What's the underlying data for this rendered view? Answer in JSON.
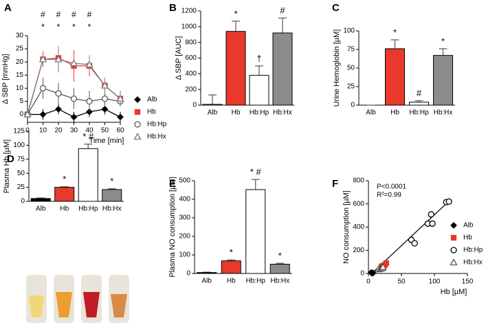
{
  "chart_data": [
    {
      "type": "line",
      "label": "A",
      "x_label": "Time [min]",
      "y_label": "Δ SBP [mmHg]",
      "x": [
        0,
        10,
        20,
        30,
        40,
        50,
        60
      ],
      "xlim": [
        0,
        60
      ],
      "xticks": [
        0,
        10,
        20,
        30,
        40,
        50,
        60
      ],
      "ylim": [
        -3,
        30
      ],
      "yticks": [
        0,
        5,
        10,
        15,
        20,
        25,
        30
      ],
      "series": [
        {
          "name": "Alb",
          "color": "#000000",
          "marker": "diamond",
          "fill": "#000000",
          "values": [
            0,
            0,
            2,
            -1,
            1,
            2,
            -1
          ],
          "errors": [
            0,
            2,
            2,
            2,
            2,
            2,
            2
          ]
        },
        {
          "name": "Hb",
          "color": "#e8392b",
          "marker": "square",
          "fill": "#e8392b",
          "values": [
            0,
            21,
            21.5,
            18.5,
            18.5,
            11,
            6
          ],
          "errors": [
            0,
            3,
            4,
            6,
            4,
            2,
            2
          ]
        },
        {
          "name": "Hb:Hp",
          "color": "#555555",
          "marker": "circle",
          "fill": "#ffffff",
          "values": [
            0,
            10,
            8,
            6,
            5,
            6,
            5
          ],
          "errors": [
            0,
            4,
            4,
            4,
            4,
            3,
            2
          ]
        },
        {
          "name": "Hb:Hx",
          "color": "#777777",
          "marker": "triangle",
          "fill": "#ffffff",
          "values": [
            0,
            21,
            21,
            19.5,
            19,
            11,
            6
          ],
          "errors": [
            0,
            2,
            5,
            2,
            3,
            3,
            3
          ]
        }
      ],
      "annotations": [
        {
          "x": 10,
          "texts": [
            "#",
            "*"
          ]
        },
        {
          "x": 20,
          "texts": [
            "#",
            "*"
          ]
        },
        {
          "x": 30,
          "texts": [
            "#",
            "*"
          ]
        },
        {
          "x": 40,
          "texts": [
            "#",
            "*"
          ]
        }
      ]
    },
    {
      "type": "bar",
      "label": "B",
      "y_label": "Δ SBP [AUC]",
      "categories": [
        "Alb",
        "Hb",
        "Hb:Hp",
        "Hb:Hx"
      ],
      "values": [
        10,
        940,
        380,
        920
      ],
      "errors": [
        120,
        130,
        120,
        190
      ],
      "colors": [
        "#ffffff",
        "#e8392b",
        "#ffffff",
        "#8c8c8c"
      ],
      "annotations": [
        null,
        "*",
        "†",
        "#"
      ],
      "ylim": [
        0,
        1200
      ],
      "yticks": [
        0,
        200,
        400,
        600,
        800,
        1000,
        1200
      ]
    },
    {
      "type": "bar",
      "label": "C",
      "y_label": "Urine Hemoglobin [µM]",
      "categories": [
        "Alb",
        "Hb",
        "Hb:Hp",
        "Hb:Hx"
      ],
      "values": [
        0,
        76,
        4,
        67
      ],
      "errors": [
        0,
        12,
        2,
        9
      ],
      "colors": [
        "#ffffff",
        "#e8392b",
        "#ffffff",
        "#8c8c8c"
      ],
      "annotations": [
        null,
        "*",
        "#",
        "*"
      ],
      "ylim": [
        0,
        100
      ],
      "yticks": [
        0,
        25,
        50,
        75,
        100
      ]
    },
    {
      "type": "bar",
      "label": "D",
      "y_label": "Plasma Hb [µM]",
      "categories": [
        "Alb",
        "Hb",
        "Hb:Hp",
        "Hb:Hx"
      ],
      "values": [
        5,
        25,
        94,
        21
      ],
      "errors": [
        1,
        1,
        8,
        1.5
      ],
      "colors": [
        "#000000",
        "#e8392b",
        "#ffffff",
        "#8c8c8c"
      ],
      "annotations": [
        null,
        "*",
        "* #",
        "*"
      ],
      "ylim": [
        0,
        125
      ],
      "yticks": [
        0,
        25,
        50,
        75,
        100,
        125
      ]
    },
    {
      "type": "bar",
      "label": "E",
      "y_label": "Plasma NO consumption [µM]",
      "categories": [
        "Alb",
        "Hb",
        "Hb:Hp",
        "Hb:Hx"
      ],
      "values": [
        5,
        68,
        452,
        50
      ],
      "errors": [
        2,
        5,
        55,
        5
      ],
      "colors": [
        "#000000",
        "#e8392b",
        "#ffffff",
        "#8c8c8c"
      ],
      "annotations": [
        null,
        "*",
        "* #",
        "*"
      ],
      "ylim": [
        0,
        500
      ],
      "yticks": [
        0,
        100,
        200,
        300,
        400,
        500
      ]
    },
    {
      "type": "scatter",
      "label": "F",
      "x_label": "Hb [µM]",
      "y_label": "NO consumption [µM]",
      "xlim": [
        0,
        150
      ],
      "xticks": [
        0,
        50,
        100,
        150
      ],
      "ylim": [
        0,
        800
      ],
      "yticks": [
        0,
        200,
        400,
        600,
        800
      ],
      "texts": [
        "P<0.0001",
        "R²=0.99"
      ],
      "fit_line": {
        "x": [
          5,
          125
        ],
        "y": [
          0,
          640
        ]
      },
      "series": [
        {
          "name": "Alb",
          "color": "#000000",
          "marker": "diamond",
          "fill": "#000000",
          "x": [
            4,
            5,
            6,
            7
          ],
          "values": [
            8,
            5,
            3,
            4
          ]
        },
        {
          "name": "Hb",
          "color": "#e8392b",
          "marker": "square",
          "fill": "#e8392b",
          "x": [
            20,
            22,
            24,
            25,
            27
          ],
          "values": [
            60,
            65,
            70,
            75,
            90
          ]
        },
        {
          "name": "Hb:Hp",
          "color": "#000000",
          "marker": "circle",
          "fill": "#ffffff",
          "x": [
            65,
            70,
            90,
            95,
            97,
            118,
            122
          ],
          "values": [
            290,
            260,
            430,
            510,
            430,
            615,
            620
          ]
        },
        {
          "name": "Hb:Hx",
          "color": "#555555",
          "marker": "triangle",
          "fill": "#ffffff",
          "x": [
            15,
            18,
            20,
            21,
            22
          ],
          "values": [
            35,
            40,
            50,
            45,
            55
          ]
        }
      ]
    }
  ]
}
